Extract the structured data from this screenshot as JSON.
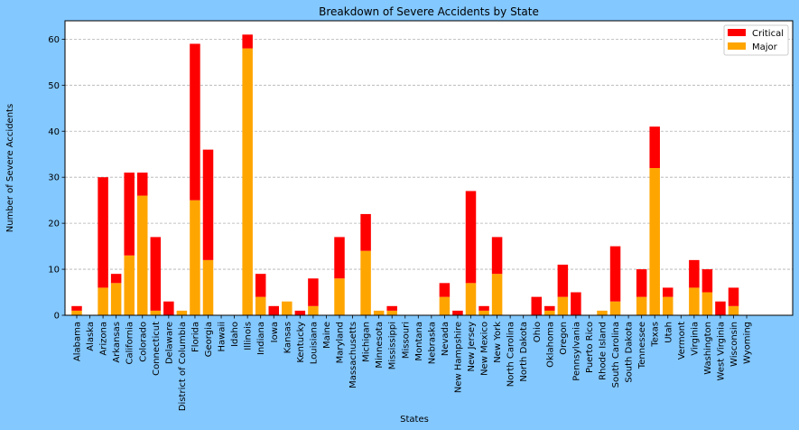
{
  "chart_data": {
    "type": "bar",
    "stacked": true,
    "title": "Breakdown of Severe Accidents by State",
    "xlabel": "States",
    "ylabel": "Number of Severe Accidents",
    "ylim": [
      0,
      64
    ],
    "yticks": [
      0,
      10,
      20,
      30,
      40,
      50,
      60
    ],
    "grid": "y-dashed",
    "legend_position": "top-right",
    "categories": [
      "Alabama",
      "Alaska",
      "Arizona",
      "Arkansas",
      "California",
      "Colorado",
      "Connecticut",
      "Delaware",
      "District of Columbia",
      "Florida",
      "Georgia",
      "Hawaii",
      "Idaho",
      "Illinois",
      "Indiana",
      "Iowa",
      "Kansas",
      "Kentucky",
      "Louisiana",
      "Maine",
      "Maryland",
      "Massachusetts",
      "Michigan",
      "Minnesota",
      "Mississippi",
      "Missouri",
      "Montana",
      "Nebraska",
      "Nevada",
      "New Hampshire",
      "New Jersey",
      "New Mexico",
      "New York",
      "North Carolina",
      "North Dakota",
      "Ohio",
      "Oklahoma",
      "Oregon",
      "Pennsylvania",
      "Puerto Rico",
      "Rhode Island",
      "South Carolina",
      "South Dakota",
      "Tennessee",
      "Texas",
      "Utah",
      "Vermont",
      "Virginia",
      "Washington",
      "West Virginia",
      "Wisconsin",
      "Wyoming"
    ],
    "series": [
      {
        "name": "Major",
        "color": "#ffa500",
        "values": [
          1,
          0,
          6,
          7,
          13,
          26,
          1,
          0,
          1,
          25,
          12,
          0,
          0,
          58,
          4,
          0,
          3,
          0,
          2,
          0,
          8,
          0,
          14,
          1,
          1,
          0,
          0,
          0,
          4,
          0,
          7,
          1,
          9,
          0,
          0,
          0,
          1,
          4,
          0,
          0,
          1,
          3,
          0,
          4,
          32,
          4,
          0,
          6,
          5,
          0,
          2,
          0
        ]
      },
      {
        "name": "Critical",
        "color": "#ff0000",
        "values": [
          1,
          0,
          24,
          2,
          18,
          5,
          16,
          3,
          0,
          34,
          24,
          0,
          0,
          3,
          5,
          2,
          0,
          1,
          6,
          0,
          9,
          0,
          8,
          0,
          1,
          0,
          0,
          0,
          3,
          1,
          20,
          1,
          8,
          0,
          0,
          4,
          1,
          7,
          5,
          0,
          0,
          12,
          0,
          6,
          9,
          2,
          0,
          6,
          5,
          3,
          4,
          0
        ]
      }
    ],
    "legend": [
      "Critical",
      "Major"
    ]
  }
}
